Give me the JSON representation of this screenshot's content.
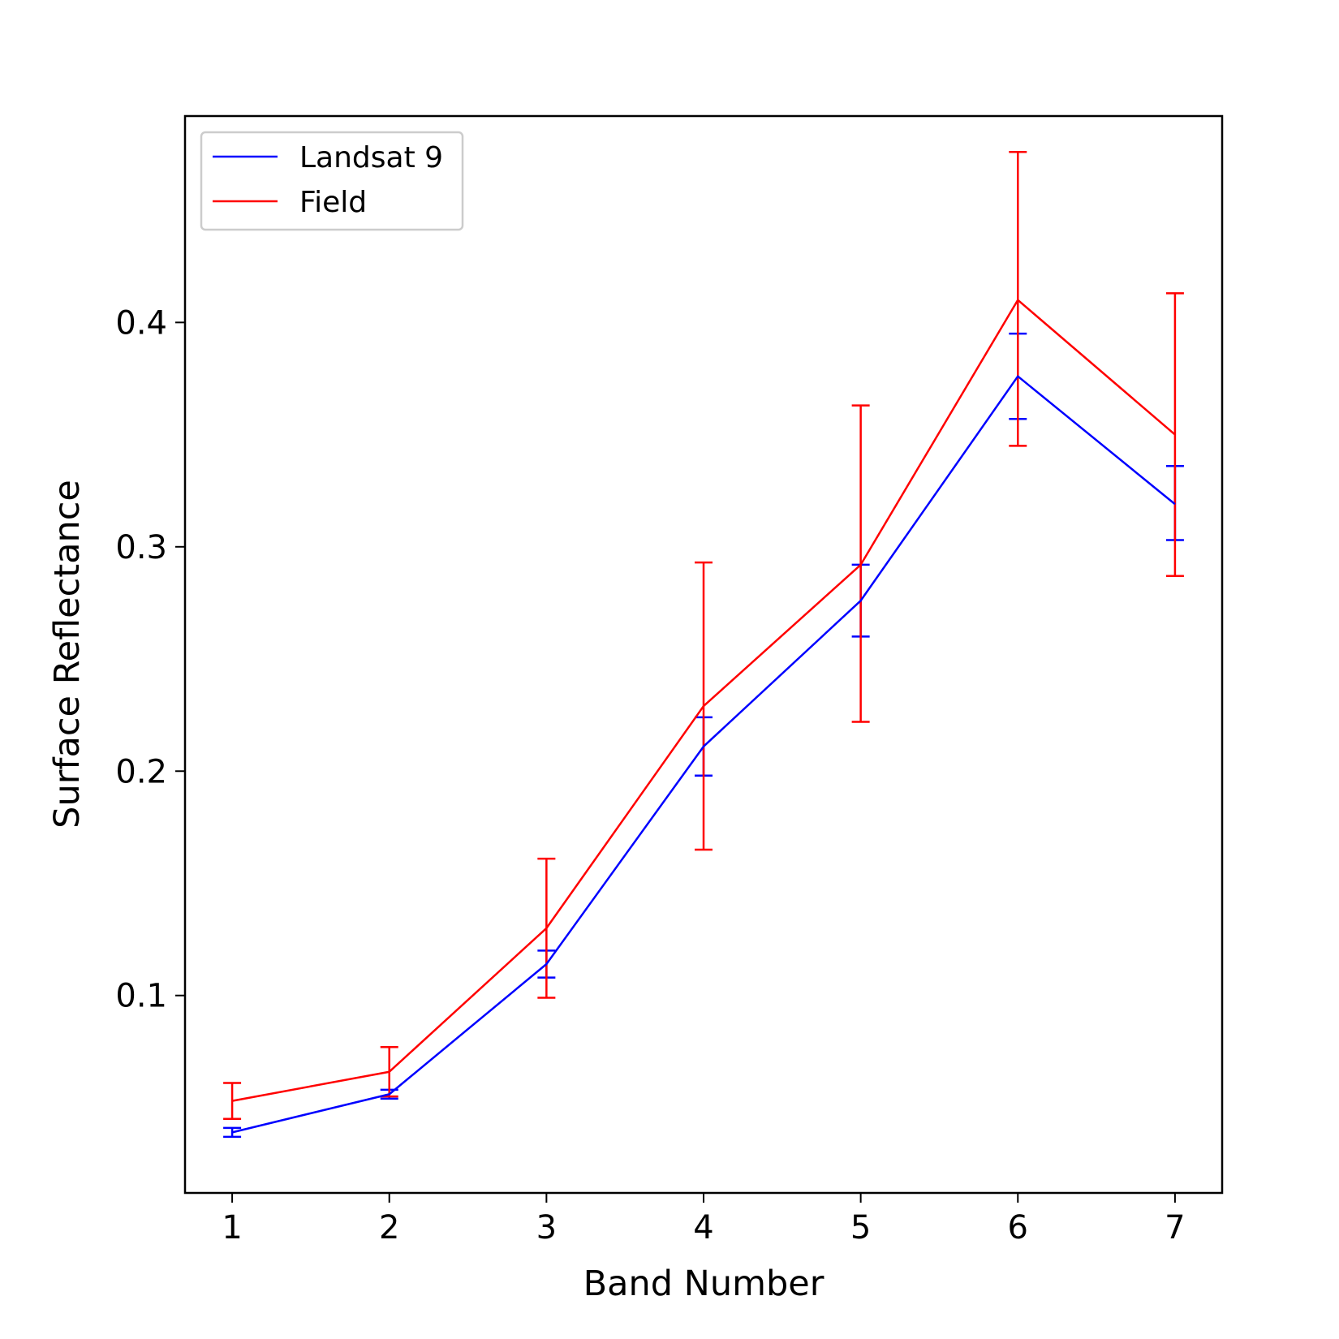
{
  "chart_data": {
    "type": "line",
    "title": "",
    "xlabel": "Band Number",
    "ylabel": "Surface Reflectance",
    "x": [
      1,
      2,
      3,
      4,
      5,
      6,
      7
    ],
    "xlim": [
      0.7,
      7.3
    ],
    "ylim": [
      0.012,
      0.492
    ],
    "xticks": [
      1,
      2,
      3,
      4,
      5,
      6,
      7
    ],
    "yticks": [
      0.1,
      0.2,
      0.3,
      0.4
    ],
    "ytick_labels": [
      "0.1",
      "0.2",
      "0.3",
      "0.4"
    ],
    "grid": false,
    "legend_position": "upper-left",
    "series": [
      {
        "name": "Landsat 9",
        "color": "#0000ff",
        "values": [
          0.039,
          0.056,
          0.114,
          0.211,
          0.276,
          0.376,
          0.319
        ],
        "lower": [
          0.037,
          0.054,
          0.108,
          0.198,
          0.26,
          0.357,
          0.303
        ],
        "upper": [
          0.041,
          0.058,
          0.12,
          0.224,
          0.292,
          0.395,
          0.336
        ]
      },
      {
        "name": "Field",
        "color": "#ff0000",
        "values": [
          0.053,
          0.066,
          0.13,
          0.229,
          0.292,
          0.41,
          0.35
        ],
        "lower": [
          0.045,
          0.055,
          0.099,
          0.165,
          0.222,
          0.345,
          0.287
        ],
        "upper": [
          0.061,
          0.077,
          0.161,
          0.293,
          0.363,
          0.476,
          0.413
        ]
      }
    ]
  }
}
